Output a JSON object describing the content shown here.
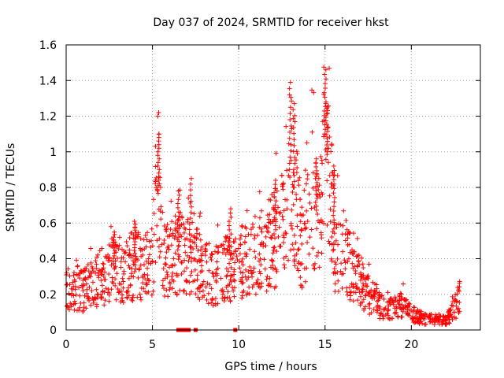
{
  "chart_data": {
    "type": "scatter",
    "title": "Day 037 of 2024, SRMTID for receiver hkst",
    "xlabel": "GPS time / hours",
    "ylabel": "SRMTID / TECUs",
    "xlim": [
      0,
      24
    ],
    "ylim": [
      0,
      1.6
    ],
    "xticks": [
      0,
      5,
      10,
      15,
      20
    ],
    "xtick_labels": [
      "0",
      "5",
      "10",
      "15",
      "20"
    ],
    "yticks": [
      0,
      0.2,
      0.4,
      0.6,
      0.8,
      1.0,
      1.2,
      1.4,
      1.6
    ],
    "ytick_labels": [
      "0",
      "0.2",
      "0.4",
      "0.6",
      "0.8",
      "1",
      "1.2",
      "1.4",
      "1.6"
    ],
    "grid": true,
    "marker": "plus",
    "color": "#ff0000",
    "envelope": [
      [
        0.0,
        0.22
      ],
      [
        0.5,
        0.24
      ],
      [
        1.0,
        0.22
      ],
      [
        1.5,
        0.28
      ],
      [
        2.0,
        0.3
      ],
      [
        2.5,
        0.33
      ],
      [
        3.0,
        0.35
      ],
      [
        3.5,
        0.32
      ],
      [
        4.0,
        0.38
      ],
      [
        4.5,
        0.33
      ],
      [
        5.0,
        0.4
      ],
      [
        5.3,
        0.9
      ],
      [
        5.6,
        0.42
      ],
      [
        6.0,
        0.38
      ],
      [
        6.5,
        0.45
      ],
      [
        7.0,
        0.42
      ],
      [
        7.5,
        0.38
      ],
      [
        8.0,
        0.33
      ],
      [
        8.5,
        0.3
      ],
      [
        9.0,
        0.32
      ],
      [
        9.5,
        0.35
      ],
      [
        10.0,
        0.38
      ],
      [
        10.5,
        0.42
      ],
      [
        11.0,
        0.38
      ],
      [
        11.5,
        0.45
      ],
      [
        12.0,
        0.5
      ],
      [
        12.5,
        0.58
      ],
      [
        13.0,
        0.9
      ],
      [
        13.3,
        0.75
      ],
      [
        13.6,
        0.45
      ],
      [
        14.0,
        0.6
      ],
      [
        14.3,
        0.75
      ],
      [
        14.6,
        0.6
      ],
      [
        15.0,
        1.1
      ],
      [
        15.3,
        0.8
      ],
      [
        15.6,
        0.45
      ],
      [
        16.0,
        0.5
      ],
      [
        16.5,
        0.32
      ],
      [
        17.0,
        0.28
      ],
      [
        17.5,
        0.2
      ],
      [
        18.0,
        0.15
      ],
      [
        18.5,
        0.11
      ],
      [
        19.0,
        0.12
      ],
      [
        19.5,
        0.14
      ],
      [
        20.0,
        0.09
      ],
      [
        20.5,
        0.07
      ],
      [
        21.0,
        0.06
      ],
      [
        21.5,
        0.06
      ],
      [
        22.0,
        0.05
      ],
      [
        22.5,
        0.12
      ],
      [
        22.8,
        0.18
      ]
    ],
    "peaks": [
      [
        5.35,
        1.1
      ],
      [
        13.0,
        1.39
      ],
      [
        13.2,
        1.27
      ],
      [
        15.0,
        1.46
      ],
      [
        15.1,
        1.27
      ],
      [
        14.5,
        0.96
      ],
      [
        15.5,
        0.92
      ],
      [
        6.5,
        0.78
      ],
      [
        7.2,
        0.85
      ],
      [
        4.0,
        0.61
      ],
      [
        2.8,
        0.55
      ],
      [
        9.5,
        0.68
      ],
      [
        12.1,
        0.84
      ]
    ],
    "zero_points": [
      6.5,
      6.7,
      6.9,
      7.1,
      7.5,
      9.8
    ],
    "point_count": 1400,
    "x_end": 22.8
  }
}
